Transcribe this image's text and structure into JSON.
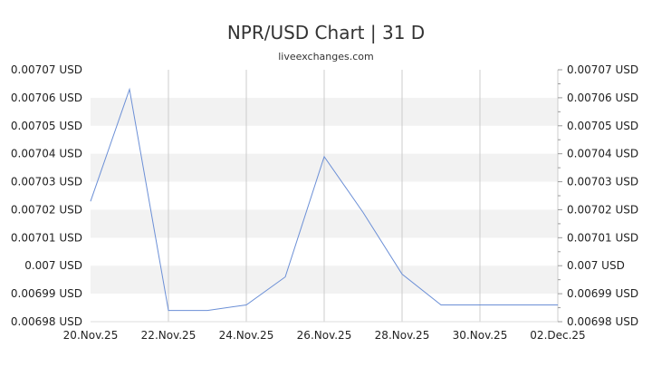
{
  "chart_data": {
    "type": "line",
    "title": "NPR/USD Chart | 31 D",
    "subtitle": "liveexchanges.com",
    "y_tick_labels": [
      "0.00707 USD",
      "0.00706 USD",
      "0.00705 USD",
      "0.00704 USD",
      "0.00703 USD",
      "0.00702 USD",
      "0.00701 USD",
      "0.007 USD",
      "0.00699 USD",
      "0.00698 USD"
    ],
    "y_ticks": [
      0.00707,
      0.00706,
      0.00705,
      0.00704,
      0.00703,
      0.00702,
      0.00701,
      0.007,
      0.00699,
      0.00698
    ],
    "x_tick_labels": [
      "20.Nov.25",
      "22.Nov.25",
      "24.Nov.25",
      "26.Nov.25",
      "28.Nov.25",
      "30.Nov.25",
      "02.Dec.25"
    ],
    "ylim": [
      0.00698,
      0.00707
    ],
    "grid": true,
    "series": [
      {
        "color": "#6b8fd6",
        "values": [
          0.007023,
          0.007063,
          0.006984,
          0.006984,
          0.006986,
          0.006996,
          0.007039,
          0.007019,
          0.006997,
          0.006986,
          0.006986,
          0.006986,
          0.006986
        ]
      }
    ]
  }
}
